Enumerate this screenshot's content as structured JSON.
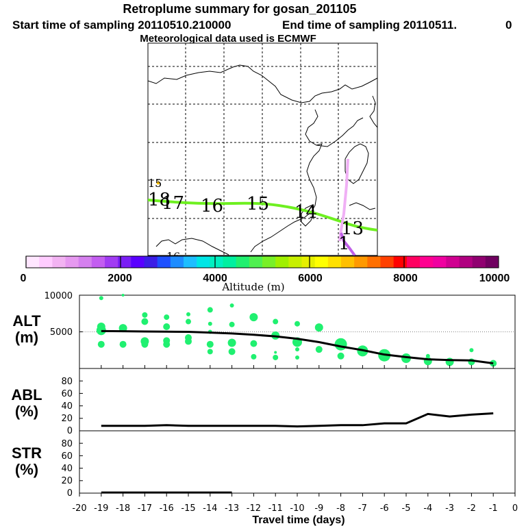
{
  "header": {
    "title": "Retroplume summary for gosan_201105",
    "start_label": "Start time of sampling 20110510.210000",
    "end_label": "End time of sampling 20110511.",
    "end_suffix": "0",
    "met_label": "Meteorological data used is ECMWF"
  },
  "map": {
    "day_labels": [
      "13",
      "14",
      "15",
      "16",
      "17",
      "18",
      "15",
      "16",
      "1"
    ]
  },
  "colorbar": {
    "ticks": [
      "0",
      "2000",
      "4000",
      "6000",
      "8000",
      "10000"
    ],
    "label": "Altitude (m)",
    "colors": [
      "#ffe6ff",
      "#ffccff",
      "#f2b3f2",
      "#e699f0",
      "#d580ee",
      "#c35ef0",
      "#a13cf2",
      "#7a1ef5",
      "#5a00ff",
      "#3c1ee6",
      "#1e50ff",
      "#1e8cff",
      "#1ebeff",
      "#00e6e6",
      "#00f0c0",
      "#00f0a0",
      "#20f070",
      "#50f050",
      "#78f028",
      "#a0f000",
      "#c8f000",
      "#e6f000",
      "#ffff00",
      "#ffe000",
      "#ffc000",
      "#ff9900",
      "#ff7000",
      "#ff4000",
      "#ff0000",
      "#ff0060",
      "#ff0090",
      "#f000a0",
      "#d00090",
      "#b00080",
      "#900070",
      "#700060"
    ]
  },
  "chart_data": [
    {
      "type": "line",
      "panel": "ALT",
      "ylabel": "ALT\n(m)",
      "ylabel_lines": [
        "ALT",
        "(m)"
      ],
      "ylim": [
        0,
        10000
      ],
      "yticks": [
        "10000",
        "5000"
      ],
      "x": [
        -19,
        -18,
        -17,
        -16,
        -15,
        -14,
        -13,
        -12,
        -11,
        -10,
        -9,
        -8,
        -7,
        -6,
        -5,
        -4,
        -3,
        -2,
        -1
      ],
      "series": [
        {
          "name": "Mean altitude",
          "values": [
            5100,
            5080,
            5050,
            5020,
            5000,
            4900,
            4780,
            4600,
            4380,
            4050,
            3600,
            3000,
            2500,
            1900,
            1550,
            1250,
            1150,
            1100,
            700
          ]
        }
      ],
      "scatter": {
        "x": [
          -19,
          -19,
          -19,
          -19,
          -18,
          -18,
          -18,
          -17,
          -17,
          -17,
          -17,
          -16,
          -16,
          -16,
          -16,
          -15,
          -15,
          -15,
          -15,
          -14,
          -14,
          -14,
          -14,
          -14,
          -13,
          -13,
          -13,
          -13,
          -12,
          -12,
          -12,
          -11,
          -11,
          -11,
          -11,
          -10,
          -10,
          -10,
          -10,
          -9,
          -9,
          -8,
          -8,
          -7,
          -6,
          -5,
          -4,
          -4,
          -3,
          -2,
          -2,
          -1
        ],
        "y": [
          9600,
          5700,
          5200,
          3300,
          10000,
          5500,
          3300,
          7300,
          6400,
          3700,
          3300,
          7000,
          5700,
          3800,
          3300,
          7400,
          6400,
          4200,
          3700,
          8000,
          6100,
          3300,
          2300,
          5000,
          8600,
          6000,
          3500,
          2300,
          7000,
          3400,
          1600,
          6400,
          4500,
          2200,
          1500,
          6100,
          3600,
          2600,
          1500,
          5600,
          2600,
          3300,
          1700,
          2400,
          1800,
          1400,
          1700,
          1000,
          900,
          2500,
          900,
          700
        ],
        "sizes": [
          3,
          6,
          7,
          5,
          2,
          6,
          5,
          4,
          5,
          6,
          5,
          4,
          5,
          5,
          5,
          3,
          4,
          5,
          5,
          4,
          3,
          5,
          4,
          3,
          3,
          4,
          6,
          5,
          6,
          5,
          4,
          4,
          6,
          2,
          4,
          4,
          7,
          3,
          3,
          6,
          5,
          9,
          5,
          8,
          9,
          7,
          3,
          6,
          6,
          3,
          5,
          5
        ]
      }
    },
    {
      "type": "line",
      "panel": "ABL",
      "ylabel_lines": [
        "ABL",
        "(%)"
      ],
      "ylim": [
        0,
        100
      ],
      "yticks": [
        "0",
        "20",
        "40",
        "60",
        "80"
      ],
      "x": [
        -19,
        -18,
        -17,
        -16,
        -15,
        -14,
        -13,
        -12,
        -11,
        -10,
        -9,
        -8,
        -7,
        -6,
        -5,
        -4,
        -3,
        -2,
        -1
      ],
      "series": [
        {
          "name": "ABL fraction",
          "values": [
            8,
            8,
            8,
            9,
            8,
            8,
            8,
            8,
            8,
            7,
            8,
            9,
            9,
            12,
            12,
            27,
            23,
            26,
            28
          ]
        }
      ]
    },
    {
      "type": "line",
      "panel": "STR",
      "ylabel_lines": [
        "STR",
        "(%)"
      ],
      "ylim": [
        0,
        100
      ],
      "yticks": [
        "0",
        "20",
        "40",
        "60",
        "80"
      ],
      "xlabel": "Travel time (days)",
      "xticks": [
        "-20",
        "-19",
        "-18",
        "-17",
        "-16",
        "-15",
        "-14",
        "-13",
        "-12",
        "-11",
        "-10",
        "-9",
        "-8",
        "-7",
        "-6",
        "-5",
        "-4",
        "-3",
        "-2",
        "-1",
        "0"
      ],
      "x": [
        -19,
        -18,
        -17,
        -16,
        -15,
        -14,
        -13
      ],
      "series": [
        {
          "name": "Stratospheric fraction",
          "values": [
            1,
            1,
            1,
            1,
            1,
            1,
            1
          ]
        }
      ]
    }
  ]
}
